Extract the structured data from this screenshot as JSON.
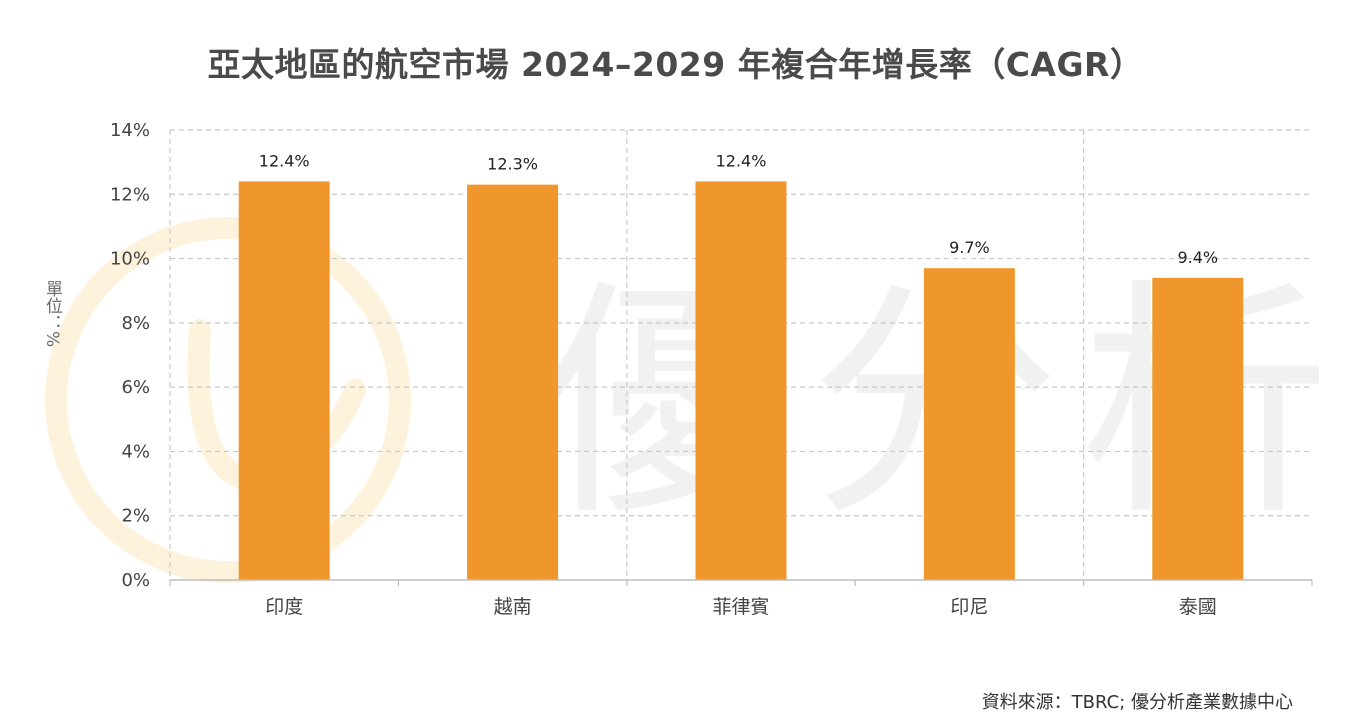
{
  "chart_data": {
    "type": "bar",
    "title": "亞太地區的航空市場 2024–2029 年複合年增長率（CAGR）",
    "ylabel": "單位：%",
    "xlabel": "",
    "categories": [
      "印度",
      "越南",
      "菲律賓",
      "印尼",
      "泰國"
    ],
    "values": [
      12.4,
      12.3,
      12.4,
      9.7,
      9.4
    ],
    "data_labels": [
      "12.4%",
      "12.3%",
      "12.4%",
      "9.7%",
      "9.4%"
    ],
    "ylim": [
      0,
      14
    ],
    "yticks": [
      0,
      2,
      4,
      6,
      8,
      10,
      12,
      14
    ],
    "ytick_labels": [
      "0%",
      "2%",
      "4%",
      "6%",
      "8%",
      "10%",
      "12%",
      "14%"
    ],
    "grid": true,
    "bar_color": "#ef962d"
  },
  "watermark": {
    "text": "優分析",
    "logo_color": "#fdf3dc",
    "text_color": "#f1f1f1"
  },
  "source": "資料來源：TBRC; 優分析產業數據中心"
}
